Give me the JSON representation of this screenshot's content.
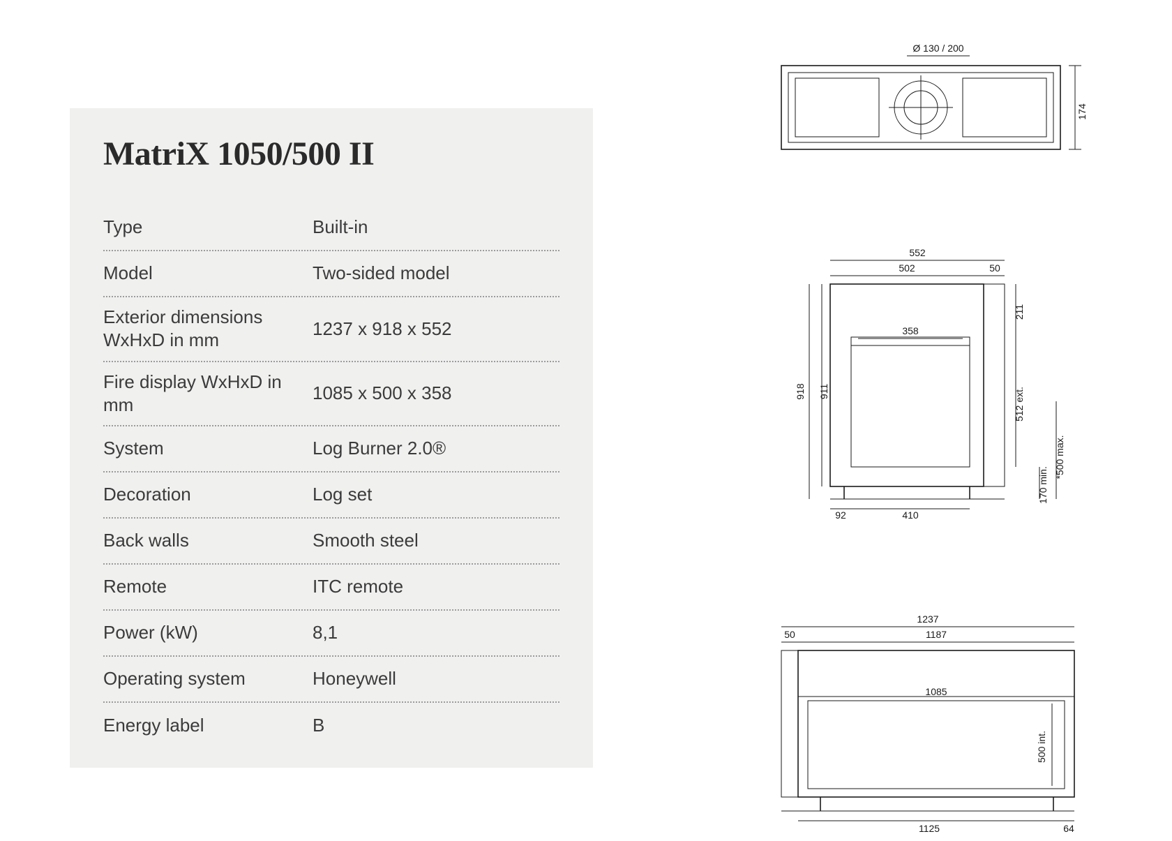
{
  "panel": {
    "title": "MatriX 1050/500 II",
    "bg_color": "#f0f0ef",
    "rows": [
      {
        "label": "Type",
        "value": "Built-in"
      },
      {
        "label": "Model",
        "value": "Two-sided model"
      },
      {
        "label": "Exterior dimensions WxHxD in mm",
        "value": "1237 x 918 x 552"
      },
      {
        "label": "Fire display WxHxD in mm",
        "value": "1085 x 500 x 358"
      },
      {
        "label": "System",
        "value": "Log Burner 2.0®"
      },
      {
        "label": "Decoration",
        "value": "Log set"
      },
      {
        "label": "Back walls",
        "value": "Smooth steel"
      },
      {
        "label": "Remote",
        "value": "ITC remote"
      },
      {
        "label": "Power (kW)",
        "value": "8,1"
      },
      {
        "label": "Operating system",
        "value": "Honeywell"
      },
      {
        "label": "Energy label",
        "value": "B"
      }
    ]
  },
  "drawings": {
    "stroke_color": "#1a1a1a",
    "dim_fontsize": 14,
    "top_view": {
      "flue_label": "Ø 130 / 200",
      "depth_label": "174"
    },
    "side_view": {
      "top_552": "552",
      "top_502": "502",
      "top_50": "50",
      "h_918": "918",
      "h_911": "911",
      "h_211": "211",
      "h_512": "512 ext.",
      "w_358": "358",
      "w_92": "92",
      "w_410": "410",
      "h_170": "170 min.",
      "h_500": "*500 max."
    },
    "front_view": {
      "top_1237": "1237",
      "top_1187": "1187",
      "top_50": "50",
      "w_1085": "1085",
      "h_500": "500 int.",
      "w_1125": "1125",
      "w_64": "64"
    }
  }
}
